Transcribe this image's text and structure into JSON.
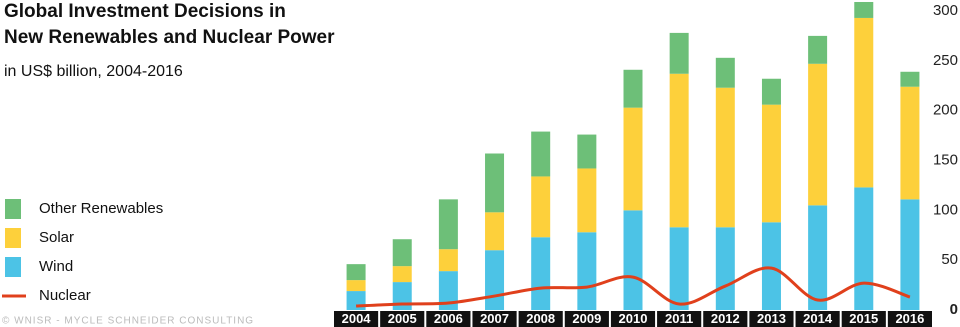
{
  "chart_data": {
    "type": "bar",
    "title": [
      "Global Investment Decisions in",
      "New Renewables and Nuclear Power"
    ],
    "subtitle": "in US$ billion, 2004-2016",
    "credit": "© WNISR - MYCLE SCHNEIDER CONSULTING",
    "categories": [
      "2004",
      "2005",
      "2006",
      "2007",
      "2008",
      "2009",
      "2010",
      "2011",
      "2012",
      "2013",
      "2014",
      "2015",
      "2016"
    ],
    "series": [
      {
        "name": "Wind",
        "type": "bar",
        "color": "#4cc3e6",
        "values": [
          19,
          28,
          39,
          60,
          73,
          78,
          100,
          83,
          83,
          88,
          105,
          123,
          111
        ]
      },
      {
        "name": "Solar",
        "type": "bar",
        "color": "#fdd03b",
        "values": [
          11,
          16,
          22,
          38,
          61,
          64,
          103,
          154,
          140,
          118,
          142,
          170,
          113
        ]
      },
      {
        "name": "Other Renewables",
        "type": "bar",
        "color": "#6dbf78",
        "values": [
          16,
          27,
          50,
          59,
          45,
          34,
          38,
          41,
          30,
          26,
          28,
          16,
          15
        ]
      },
      {
        "name": "Nuclear",
        "type": "line",
        "color": "#e0401c",
        "values": [
          4,
          6,
          7,
          14,
          22,
          23,
          33,
          6,
          24,
          42,
          10,
          27,
          13
        ]
      }
    ],
    "ylim": [
      0,
      310
    ],
    "yticks": [
      0,
      50,
      100,
      150,
      200,
      250,
      300
    ],
    "y_axis_side": "right",
    "grid": false
  }
}
